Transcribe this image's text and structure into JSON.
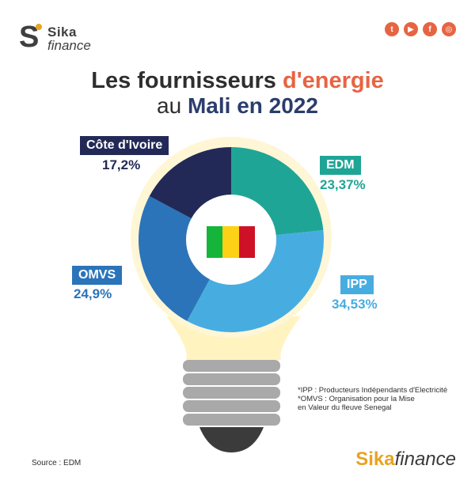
{
  "logo": {
    "mark": "S",
    "line1": "Sika",
    "line2": "finance"
  },
  "socials": [
    {
      "icon": "twitter-icon",
      "glyph": "t"
    },
    {
      "icon": "youtube-icon",
      "glyph": "▶"
    },
    {
      "icon": "facebook-icon",
      "glyph": "f"
    },
    {
      "icon": "instagram-icon",
      "glyph": "◎"
    }
  ],
  "title": {
    "line1_part1": "Les fournisseurs ",
    "line1_part2": "d'energie",
    "line2_part1": "au ",
    "line2_part2": "Mali en 2022"
  },
  "chart_data": {
    "type": "pie",
    "title": "Les fournisseurs d'energie au Mali en 2022",
    "series": [
      {
        "name": "EDM",
        "value": 23.37,
        "label": "23,37%",
        "color": "#1fa596"
      },
      {
        "name": "IPP",
        "value": 34.53,
        "label": "34,53%",
        "color": "#47ade1"
      },
      {
        "name": "OMVS",
        "value": 24.9,
        "label": "24,9%",
        "color": "#2b74ba"
      },
      {
        "name": "Côte d'Ivoire",
        "value": 17.2,
        "label": "17,2%",
        "color": "#232957"
      }
    ],
    "label_colors": {
      "EDM": "#1fa596",
      "IPP": "#47ade1",
      "OMVS": "#2b74ba",
      "Côte d'Ivoire": "#232957"
    }
  },
  "flag_colors": [
    "#14b53a",
    "#fcd116",
    "#ce1126"
  ],
  "notes": {
    "line1": "*IPP : Producteurs Indépendants d'Electricité",
    "line2": "*OMVS : Organisation pour la Mise",
    "line3": "en Valeur du fleuve Senegal"
  },
  "source": "Source : EDM",
  "brand": {
    "part1": "Sika",
    "part2": "finance"
  }
}
